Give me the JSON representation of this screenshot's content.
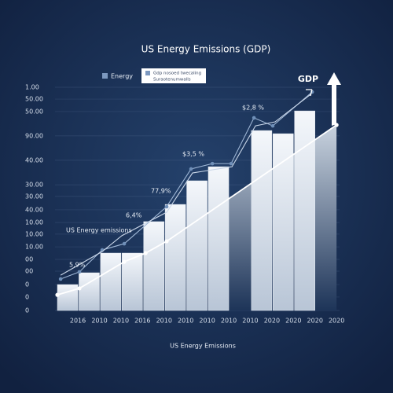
{
  "chart_data": {
    "type": "bar-line",
    "title": "US Energy Emissions (GDP)",
    "x_axis_label": "US Energy Emissions",
    "gdp_label": "GDP",
    "legend": {
      "entry": "Energy",
      "box_lines": [
        "Gdp nosoed twecaling",
        "Suraotenumwalls"
      ]
    },
    "annotations": [
      "5,9%",
      "US Energy emissions",
      "6,4%",
      "77,9%",
      "$3,5 %",
      "$2,8 %"
    ],
    "categories": [
      "2016",
      "2010",
      "2010",
      "2016",
      "2010",
      "2010",
      "2010",
      "2010",
      "2010",
      "2020",
      "2020",
      "2020",
      "2020"
    ],
    "xlim": [
      -1.06,
      12.14
    ],
    "ylim": [
      0,
      100
    ],
    "yticks": [
      {
        "value": 100,
        "label": "1.00"
      },
      {
        "value": 94.7,
        "label": "50.00"
      },
      {
        "value": 89.1,
        "label": "50.00"
      },
      {
        "value": 78.2,
        "label": "90.00"
      },
      {
        "value": 67.3,
        "label": "40.00"
      },
      {
        "value": 56.3,
        "label": "30.00"
      },
      {
        "value": 51.1,
        "label": "30.00"
      },
      {
        "value": 45.1,
        "label": "40.00"
      },
      {
        "value": 39.4,
        "label": "10.00"
      },
      {
        "value": 34.2,
        "label": "10.00"
      },
      {
        "value": 28.5,
        "label": "10.00"
      },
      {
        "value": 22.9,
        "label": "00"
      },
      {
        "value": 17.6,
        "label": "00"
      },
      {
        "value": 11.6,
        "label": "0"
      },
      {
        "value": 6,
        "label": "0"
      },
      0
    ],
    "grid": true,
    "bars": {
      "color": "#e4eaf2",
      "values": [
        11.6,
        16.9,
        25.7,
        25.7,
        39.8,
        47.5,
        58.1,
        64.4,
        null,
        80.6,
        79.2,
        89.4,
        null
      ]
    },
    "series": [
      {
        "color": "#ffffff",
        "x": [
          -0.95,
          0.07,
          2.15,
          3.14,
          4.12,
          12.0
        ],
        "values": [
          7.0,
          9.9,
          21.8,
          25.7,
          31.0,
          83.1
        ]
      },
      {
        "color": "#9fb7d6",
        "x": [
          -0.8,
          0.07,
          1.13,
          2.15,
          4.12,
          5.25,
          6.24,
          7.11,
          8.17,
          9.04,
          10.87
        ],
        "values": [
          14.1,
          17.3,
          27.1,
          29.9,
          46.5,
          63.4,
          65.8,
          65.8,
          86.3,
          82.7,
          97.9
        ]
      },
      {
        "color": "#c9d6e8",
        "x": [
          -0.8,
          1.13,
          2.04,
          4.12,
          5.32,
          7.15,
          8.24,
          9.15,
          10.8
        ],
        "values": [
          15.8,
          26.4,
          33.5,
          44.0,
          61.6,
          64.4,
          82.7,
          84.5,
          96.8
        ]
      }
    ]
  }
}
